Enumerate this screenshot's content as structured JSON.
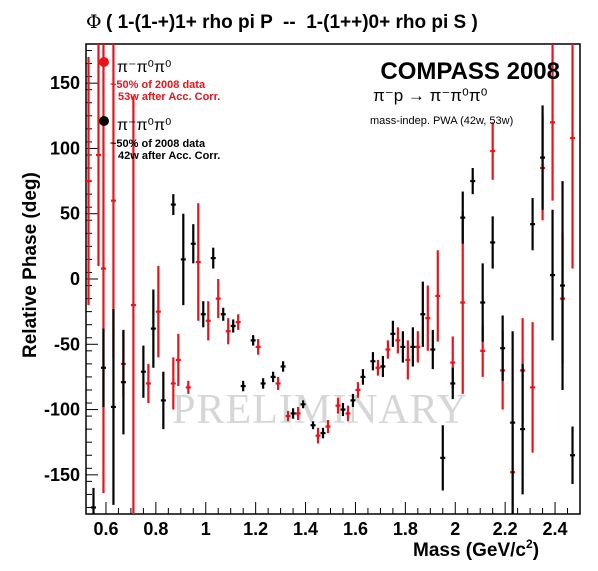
{
  "chart_data": {
    "type": "scatter",
    "title_symbol": "Φ",
    "title": "( 1-(1-+)1+ rho pi P  --  1-(1++)0+ rho pi S )",
    "xlabel": "Mass (GeV/c",
    "xlabel_sup": "2",
    "xlabel_close": ")",
    "ylabel": "Relative Phase (deg)",
    "xlim": [
      0.52,
      2.5
    ],
    "ylim": [
      -180,
      180
    ],
    "x_ticks": [
      "0.6",
      "0.8",
      "1",
      "1.2",
      "1.4",
      "1.6",
      "1.8",
      "2",
      "2.2",
      "2.4"
    ],
    "y_ticks": [
      "150",
      "100",
      "50",
      "0",
      "-50",
      "-100",
      "-150"
    ],
    "experiment": "COMPASS 2008",
    "reaction": "π⁻p → π⁻π⁰π⁰",
    "analysis_note": "mass-indep. PWA (42w, 53w)",
    "watermark": "PRELIMINARY",
    "colors": {
      "red": "#e8141c",
      "black": "#000000"
    },
    "series": [
      {
        "name": "π⁻π⁰π⁰",
        "legend_line1": "~50% of 2008 data",
        "legend_line2": "53w after Acc. Corr.",
        "color": "#e8141c",
        "points": [
          {
            "x": 0.53,
            "y": 75,
            "err": 95,
            "xerr": 0.01
          },
          {
            "x": 0.57,
            "y": 95,
            "err": 85,
            "xerr": 0.01
          },
          {
            "x": 0.59,
            "y": 8,
            "err": 172,
            "xerr": 0.01
          },
          {
            "x": 0.63,
            "y": 60,
            "err": 120,
            "xerr": 0.01
          },
          {
            "x": 0.67,
            "y": -65,
            "err": 25,
            "xerr": 0.01
          },
          {
            "x": 0.71,
            "y": -20,
            "err": 160,
            "xerr": 0.01
          },
          {
            "x": 0.77,
            "y": -80,
            "err": 15,
            "xerr": 0.01
          },
          {
            "x": 0.81,
            "y": -25,
            "err": 35,
            "xerr": 0.01
          },
          {
            "x": 0.87,
            "y": -80,
            "err": 20,
            "xerr": 0.01
          },
          {
            "x": 0.89,
            "y": -62,
            "err": 20,
            "xerr": 0.01
          },
          {
            "x": 0.93,
            "y": -83,
            "err": 5,
            "xerr": 0.01
          },
          {
            "x": 0.97,
            "y": 13,
            "err": 45,
            "xerr": 0.01
          },
          {
            "x": 1.01,
            "y": -32,
            "err": 15,
            "xerr": 0.01
          },
          {
            "x": 1.05,
            "y": -15,
            "err": 15,
            "xerr": 0.01
          },
          {
            "x": 1.09,
            "y": -40,
            "err": 10,
            "xerr": 0.01
          },
          {
            "x": 1.13,
            "y": -33,
            "err": 6,
            "xerr": 0.01
          },
          {
            "x": 1.21,
            "y": -52,
            "err": 6,
            "xerr": 0.01
          },
          {
            "x": 1.29,
            "y": -80,
            "err": 5,
            "xerr": 0.01
          },
          {
            "x": 1.33,
            "y": -105,
            "err": 4,
            "xerr": 0.01
          },
          {
            "x": 1.37,
            "y": -103,
            "err": 5,
            "xerr": 0.01
          },
          {
            "x": 1.45,
            "y": -120,
            "err": 6,
            "xerr": 0.01
          },
          {
            "x": 1.49,
            "y": -113,
            "err": 5,
            "xerr": 0.01
          },
          {
            "x": 1.53,
            "y": -97,
            "err": 6,
            "xerr": 0.01
          },
          {
            "x": 1.57,
            "y": -103,
            "err": 6,
            "xerr": 0.01
          },
          {
            "x": 1.61,
            "y": -85,
            "err": 6,
            "xerr": 0.01
          },
          {
            "x": 1.69,
            "y": -68,
            "err": 6,
            "xerr": 0.01
          },
          {
            "x": 1.73,
            "y": -54,
            "err": 7,
            "xerr": 0.01
          },
          {
            "x": 1.77,
            "y": -47,
            "err": 10,
            "xerr": 0.01
          },
          {
            "x": 1.81,
            "y": -62,
            "err": 15,
            "xerr": 0.01
          },
          {
            "x": 1.85,
            "y": -52,
            "err": 12,
            "xerr": 0.01
          },
          {
            "x": 1.89,
            "y": -30,
            "err": 25,
            "xerr": 0.01
          },
          {
            "x": 1.93,
            "y": -13,
            "err": 35,
            "xerr": 0.01
          },
          {
            "x": 1.99,
            "y": -64,
            "err": 20,
            "xerr": 0.01
          },
          {
            "x": 2.03,
            "y": -18,
            "err": 70,
            "xerr": 0.01
          },
          {
            "x": 2.11,
            "y": -55,
            "err": 20,
            "xerr": 0.01
          },
          {
            "x": 2.15,
            "y": 98,
            "err": 22,
            "xerr": 0.01
          },
          {
            "x": 2.19,
            "y": -70,
            "err": 30,
            "xerr": 0.01
          },
          {
            "x": 2.23,
            "y": -148,
            "err": 35,
            "xerr": 0.01
          },
          {
            "x": 2.27,
            "y": -70,
            "err": 40,
            "xerr": 0.01
          },
          {
            "x": 2.31,
            "y": -83,
            "err": 50,
            "xerr": 0.01
          },
          {
            "x": 2.35,
            "y": 85,
            "err": 40,
            "xerr": 0.01
          },
          {
            "x": 2.39,
            "y": 120,
            "err": 60,
            "xerr": 0.01
          },
          {
            "x": 2.43,
            "y": -15,
            "err": 50,
            "xerr": 0.01
          },
          {
            "x": 2.47,
            "y": 108,
            "err": 100,
            "xerr": 0.01
          }
        ]
      },
      {
        "name": "π⁻π⁰π⁰",
        "legend_line1": "~50% of 2008 data",
        "legend_line2": "42w after Acc. Corr.",
        "color": "#000000",
        "points": [
          {
            "x": 0.55,
            "y": -175,
            "err": 15,
            "xerr": 0.01
          },
          {
            "x": 0.59,
            "y": -68,
            "err": 30,
            "xerr": 0.01
          },
          {
            "x": 0.63,
            "y": -98,
            "err": 75,
            "xerr": 0.01
          },
          {
            "x": 0.67,
            "y": -79,
            "err": 40,
            "xerr": 0.01
          },
          {
            "x": 0.75,
            "y": -71,
            "err": 20,
            "xerr": 0.01
          },
          {
            "x": 0.79,
            "y": -38,
            "err": 30,
            "xerr": 0.01
          },
          {
            "x": 0.83,
            "y": -93,
            "err": 22,
            "xerr": 0.01
          },
          {
            "x": 0.87,
            "y": 57,
            "err": 8,
            "xerr": 0.01
          },
          {
            "x": 0.91,
            "y": 15,
            "err": 35,
            "xerr": 0.01
          },
          {
            "x": 0.95,
            "y": 27,
            "err": 15,
            "xerr": 0.01
          },
          {
            "x": 0.99,
            "y": -27,
            "err": 10,
            "xerr": 0.01
          },
          {
            "x": 1.03,
            "y": 16,
            "err": 8,
            "xerr": 0.01
          },
          {
            "x": 1.07,
            "y": -27,
            "err": 5,
            "xerr": 0.01
          },
          {
            "x": 1.11,
            "y": -36,
            "err": 5,
            "xerr": 0.01
          },
          {
            "x": 1.15,
            "y": -82,
            "err": 4,
            "xerr": 0.01
          },
          {
            "x": 1.19,
            "y": -47,
            "err": 4,
            "xerr": 0.01
          },
          {
            "x": 1.23,
            "y": -80,
            "err": 4,
            "xerr": 0.01
          },
          {
            "x": 1.27,
            "y": -75,
            "err": 4,
            "xerr": 0.01
          },
          {
            "x": 1.31,
            "y": -67,
            "err": 4,
            "xerr": 0.01
          },
          {
            "x": 1.35,
            "y": -103,
            "err": 4,
            "xerr": 0.01
          },
          {
            "x": 1.39,
            "y": -96,
            "err": 3,
            "xerr": 0.01
          },
          {
            "x": 1.43,
            "y": -112,
            "err": 3,
            "xerr": 0.01
          },
          {
            "x": 1.47,
            "y": -118,
            "err": 4,
            "xerr": 0.01
          },
          {
            "x": 1.55,
            "y": -100,
            "err": 5,
            "xerr": 0.01
          },
          {
            "x": 1.59,
            "y": -93,
            "err": 5,
            "xerr": 0.01
          },
          {
            "x": 1.63,
            "y": -75,
            "err": 6,
            "xerr": 0.01
          },
          {
            "x": 1.67,
            "y": -63,
            "err": 7,
            "xerr": 0.01
          },
          {
            "x": 1.71,
            "y": -67,
            "err": 8,
            "xerr": 0.01
          },
          {
            "x": 1.75,
            "y": -42,
            "err": 10,
            "xerr": 0.01
          },
          {
            "x": 1.79,
            "y": -52,
            "err": 12,
            "xerr": 0.01
          },
          {
            "x": 1.83,
            "y": -52,
            "err": 15,
            "xerr": 0.01
          },
          {
            "x": 1.87,
            "y": -27,
            "err": 25,
            "xerr": 0.01
          },
          {
            "x": 1.91,
            "y": -54,
            "err": 15,
            "xerr": 0.01
          },
          {
            "x": 1.95,
            "y": -137,
            "err": 25,
            "xerr": 0.01
          },
          {
            "x": 1.99,
            "y": -80,
            "err": 12,
            "xerr": 0.01
          },
          {
            "x": 2.03,
            "y": 47,
            "err": 20,
            "xerr": 0.01
          },
          {
            "x": 2.07,
            "y": 75,
            "err": 10,
            "xerr": 0.01
          },
          {
            "x": 2.11,
            "y": -18,
            "err": 30,
            "xerr": 0.01
          },
          {
            "x": 2.15,
            "y": 28,
            "err": 20,
            "xerr": 0.01
          },
          {
            "x": 2.19,
            "y": -53,
            "err": 25,
            "xerr": 0.01
          },
          {
            "x": 2.23,
            "y": -110,
            "err": 70,
            "xerr": 0.01
          },
          {
            "x": 2.27,
            "y": -115,
            "err": 50,
            "xerr": 0.01
          },
          {
            "x": 2.31,
            "y": 42,
            "err": 20,
            "xerr": 0.01
          },
          {
            "x": 2.35,
            "y": 93,
            "err": 40,
            "xerr": 0.01
          },
          {
            "x": 2.39,
            "y": 3,
            "err": 50,
            "xerr": 0.01
          },
          {
            "x": 2.43,
            "y": -5,
            "err": 80,
            "xerr": 0.01
          },
          {
            "x": 2.47,
            "y": -135,
            "err": 22,
            "xerr": 0.01
          }
        ]
      }
    ]
  }
}
